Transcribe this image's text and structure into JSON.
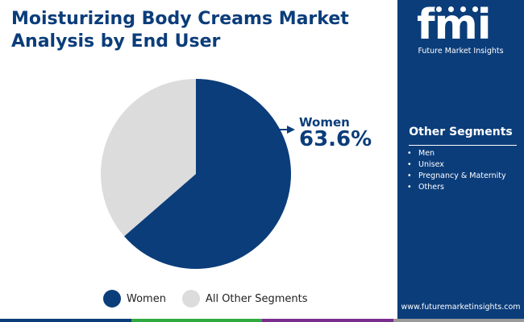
{
  "header": {
    "title": "Moisturizing Body Creams Market Analysis by End User"
  },
  "chart_data": {
    "type": "pie",
    "categories": [
      "Women",
      "All Other Segments"
    ],
    "values": [
      63.6,
      36.4
    ],
    "colors": [
      "#0b3d7a",
      "#dcdcdc"
    ],
    "callout": {
      "label": "Women",
      "value": "63.6%"
    },
    "legend": [
      "Women",
      "All Other Segments"
    ],
    "legend_placement": "bottom"
  },
  "sidebar": {
    "logo_letters": "fmi",
    "logo_name": "Future Market Insights",
    "segments_title": "Other Segments",
    "segments": [
      "Men",
      "Unisex",
      "Pregnancy & Maternity",
      "Others"
    ],
    "website": "www.futuremarketinsights.com"
  },
  "colors": {
    "brand": "#0b3d7a",
    "other": "#dcdcdc",
    "bottom_bar": [
      "#0b3d7a",
      "#2eaa3f",
      "#7b2d8e",
      "#9a9a9a"
    ]
  }
}
